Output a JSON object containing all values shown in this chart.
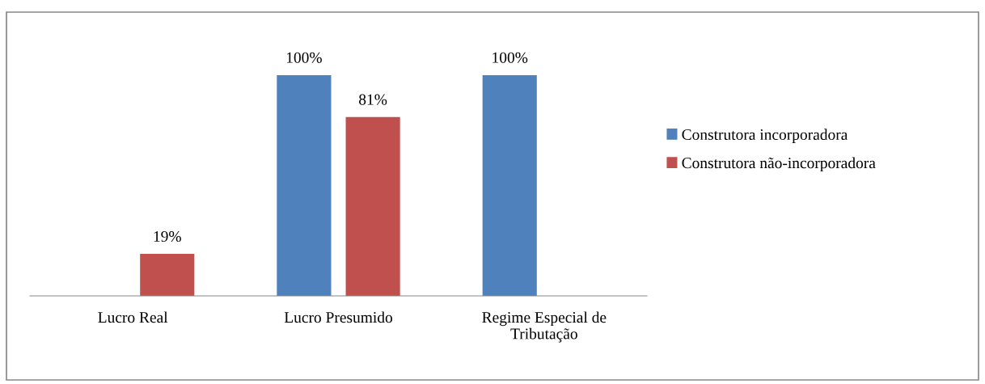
{
  "chart_data": {
    "type": "bar",
    "categories": [
      "Lucro Real",
      "Lucro Presumido",
      "Regime Especial de Tributação"
    ],
    "series": [
      {
        "name": "Construtora incorporadora",
        "color": "#4f81bd",
        "values": [
          null,
          100,
          100
        ],
        "value_labels": [
          null,
          "100%",
          "100%"
        ]
      },
      {
        "name": "Construtora não-incorporadora",
        "color": "#c0504d",
        "values": [
          19,
          81,
          null
        ],
        "value_labels": [
          "19%",
          "81%",
          null
        ]
      }
    ],
    "grid": false,
    "legend": "right",
    "tick_labels": "x"
  }
}
